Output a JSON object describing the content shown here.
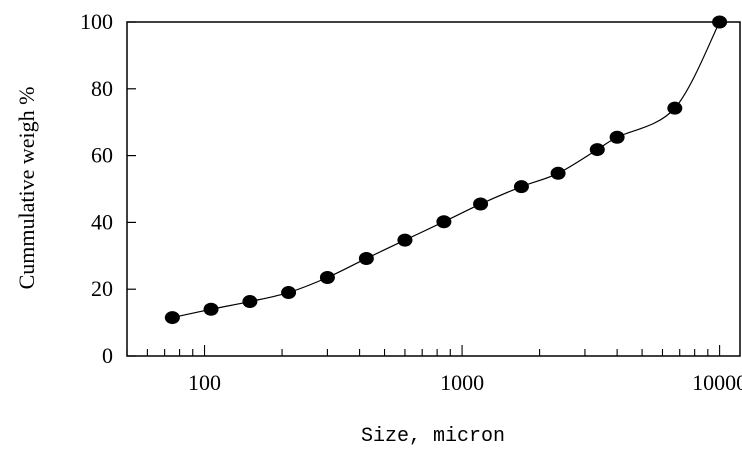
{
  "chart_data": {
    "type": "scatter",
    "title": "",
    "xlabel": "Size, micron",
    "ylabel": "Cummulative weigh %",
    "xscale": "log",
    "xlim": [
      50,
      12000
    ],
    "ylim": [
      0,
      100
    ],
    "yticks": [
      0,
      20,
      40,
      60,
      80,
      100
    ],
    "xticks_major": [
      100,
      1000,
      10000
    ],
    "xtick_labels": [
      "100",
      "1000",
      "10000"
    ],
    "ytick_labels": [
      "0",
      "20",
      "40",
      "60",
      "80",
      "100"
    ],
    "grid": false,
    "marker": "filled-circle",
    "line": "smooth",
    "series": [
      {
        "x": [
          75,
          106,
          150,
          212,
          300,
          425,
          600,
          850,
          1180,
          1700,
          2360,
          3350,
          4000,
          6700,
          10000
        ],
        "y": [
          11.5,
          14,
          16.3,
          19,
          23.5,
          29.2,
          34.7,
          40.2,
          45.5,
          50.7,
          54.7,
          61.8,
          65.5,
          74.2,
          100
        ]
      }
    ],
    "colors": {
      "marker": "#000000",
      "line": "#000000",
      "axis": "#000000"
    }
  }
}
